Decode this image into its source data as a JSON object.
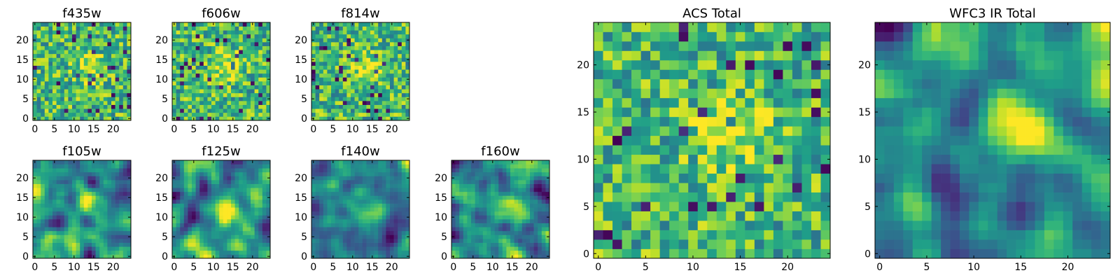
{
  "chart_data": [
    {
      "type": "heatmap",
      "title": "f435w",
      "size": 25,
      "colormap": "viridis",
      "xticks": [
        0,
        5,
        10,
        15,
        20
      ],
      "yticks": [
        0,
        5,
        10,
        15,
        20
      ],
      "xlim": [
        -0.5,
        24.5
      ],
      "ylim": [
        -0.5,
        24.5
      ],
      "grid": false,
      "texture": "noisy",
      "peak": [
        14,
        13
      ],
      "note": "pixel values are noisy random flux map"
    },
    {
      "type": "heatmap",
      "title": "f606w",
      "size": 25,
      "colormap": "viridis",
      "xticks": [
        0,
        5,
        10,
        15,
        20
      ],
      "yticks": [
        0,
        5,
        10,
        15,
        20
      ],
      "xlim": [
        -0.5,
        24.5
      ],
      "ylim": [
        -0.5,
        24.5
      ],
      "grid": false,
      "texture": "noisy",
      "peak": [
        14,
        13
      ]
    },
    {
      "type": "heatmap",
      "title": "f814w",
      "size": 25,
      "colormap": "viridis",
      "xticks": [
        0,
        5,
        10,
        15,
        20
      ],
      "yticks": [
        0,
        5,
        10,
        15,
        20
      ],
      "xlim": [
        -0.5,
        24.5
      ],
      "ylim": [
        -0.5,
        24.5
      ],
      "grid": false,
      "texture": "noisy",
      "peak": [
        14,
        13
      ]
    },
    {
      "type": "heatmap",
      "title": "f105w",
      "size": 25,
      "colormap": "viridis",
      "xticks": [
        0,
        5,
        10,
        15,
        20
      ],
      "yticks": [
        0,
        5,
        10,
        15,
        20
      ],
      "xlim": [
        -0.5,
        24.5
      ],
      "ylim": [
        -0.5,
        24.5
      ],
      "grid": false,
      "texture": "smooth",
      "peak": [
        14,
        13
      ]
    },
    {
      "type": "heatmap",
      "title": "f125w",
      "size": 25,
      "colormap": "viridis",
      "xticks": [
        0,
        5,
        10,
        15,
        20
      ],
      "yticks": [
        0,
        5,
        10,
        15,
        20
      ],
      "xlim": [
        -0.5,
        24.5
      ],
      "ylim": [
        -0.5,
        24.5
      ],
      "grid": false,
      "texture": "smooth",
      "peak": [
        14,
        13
      ]
    },
    {
      "type": "heatmap",
      "title": "f140w",
      "size": 25,
      "colormap": "viridis",
      "xticks": [
        0,
        5,
        10,
        15,
        20
      ],
      "yticks": [
        0,
        5,
        10,
        15,
        20
      ],
      "xlim": [
        -0.5,
        24.5
      ],
      "ylim": [
        -0.5,
        24.5
      ],
      "grid": false,
      "texture": "smooth",
      "peak": [
        14,
        13
      ]
    },
    {
      "type": "heatmap",
      "title": "f160w",
      "size": 25,
      "colormap": "viridis",
      "xticks": [
        0,
        5,
        10,
        15,
        20
      ],
      "yticks": [
        0,
        5,
        10,
        15,
        20
      ],
      "xlim": [
        -0.5,
        24.5
      ],
      "ylim": [
        -0.5,
        24.5
      ],
      "grid": false,
      "texture": "smooth",
      "peak": [
        14,
        13
      ]
    },
    {
      "type": "heatmap",
      "title": "ACS Total",
      "size": 25,
      "colormap": "viridis",
      "xticks": [
        0,
        5,
        10,
        15,
        20
      ],
      "yticks": [
        0,
        5,
        10,
        15,
        20
      ],
      "xlim": [
        -0.5,
        24.5
      ],
      "ylim": [
        -0.5,
        24.5
      ],
      "grid": false,
      "texture": "noisy",
      "peak": [
        14,
        13
      ]
    },
    {
      "type": "heatmap",
      "title": "WFC3 IR Total",
      "size": 25,
      "colormap": "viridis",
      "xticks": [
        0,
        5,
        10,
        15,
        20
      ],
      "yticks": [
        0,
        5,
        10,
        15,
        20
      ],
      "xlim": [
        -0.5,
        24.5
      ],
      "ylim": [
        -0.5,
        24.5
      ],
      "grid": false,
      "texture": "smooth",
      "peak": [
        14,
        13
      ]
    }
  ]
}
